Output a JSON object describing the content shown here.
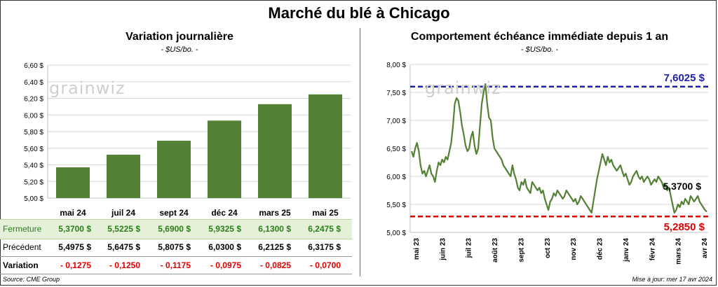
{
  "title": "Marché du blé à Chicago",
  "left_panel": {
    "title": "Variation  journalière",
    "unit": "- $US/bo. -"
  },
  "right_panel": {
    "title": "Comportement  échéance immédiate depuis 1 an",
    "unit": "- $US/bo. -"
  },
  "watermark": "grainwiz",
  "table": {
    "rows": [
      {
        "label": "Fermeture",
        "values": [
          "5,3700  $",
          "5,5225  $",
          "5,6900  $",
          "5,9325  $",
          "6,1300  $",
          "6,2475  $"
        ]
      },
      {
        "label": "Précédent",
        "values": [
          "5,4975  $",
          "5,6475  $",
          "5,8075  $",
          "6,0300  $",
          "6,2125  $",
          "6,3175  $"
        ]
      },
      {
        "label": "Variation",
        "values": [
          "- 0,1275",
          "- 0,1250",
          "- 0,1175",
          "- 0,0975",
          "- 0,0825",
          "- 0,0700"
        ]
      }
    ]
  },
  "footer": {
    "source": "Source: CME Group",
    "updated": "Mise à jour: mer 17 avr 2024"
  },
  "colors": {
    "bar": "#538135",
    "line": "#538135",
    "high_line": "#1f1fa8",
    "low_line": "#e00000"
  },
  "chart_data": [
    {
      "type": "bar",
      "title": "Variation  journalière",
      "subtitle": "- $US/bo. -",
      "categories": [
        "mai 24",
        "juil 24",
        "sept 24",
        "déc 24",
        "mars 25",
        "mai 25"
      ],
      "values": [
        5.37,
        5.5225,
        5.69,
        5.9325,
        6.13,
        6.2475
      ],
      "ylim": [
        5.0,
        6.6
      ],
      "yticks": [
        5.0,
        5.2,
        5.4,
        5.6,
        5.8,
        6.0,
        6.2,
        6.4,
        6.6
      ],
      "ytick_labels": [
        "5,00 $",
        "5,20 $",
        "5,40 $",
        "5,60 $",
        "5,80 $",
        "6,00 $",
        "6,20 $",
        "6,40 $",
        "6,60 $"
      ],
      "grid": true,
      "legend": "none"
    },
    {
      "type": "line",
      "title": "Comportement  échéance immédiate depuis 1 an",
      "subtitle": "- $US/bo. -",
      "x_labels": [
        "mai 23",
        "juin 23",
        "juil 23",
        "août 23",
        "sept 23",
        "oct 23",
        "nov 23",
        "déc 23",
        "janv 24",
        "févr 24",
        "mars 24",
        "avr 24"
      ],
      "ylim": [
        5.0,
        8.0
      ],
      "yticks": [
        5.0,
        5.5,
        6.0,
        6.5,
        7.0,
        7.5,
        8.0
      ],
      "ytick_labels": [
        "5,00 $",
        "5,50 $",
        "6,00 $",
        "6,50 $",
        "7,00 $",
        "7,50 $",
        "8,00 $"
      ],
      "series": [
        {
          "values": [
            6.45,
            6.35,
            6.5,
            6.6,
            6.45,
            6.2,
            6.05,
            6.1,
            6.0,
            6.1,
            6.2,
            6.05,
            6.0,
            5.9,
            6.1,
            6.25,
            6.2,
            6.3,
            6.25,
            6.35,
            6.3,
            6.45,
            6.6,
            6.9,
            7.3,
            7.4,
            7.35,
            7.15,
            6.9,
            6.75,
            6.55,
            6.45,
            6.5,
            6.7,
            6.8,
            6.55,
            6.4,
            6.5,
            6.9,
            7.3,
            7.5,
            7.65,
            7.3,
            7.05,
            7.0,
            6.7,
            6.5,
            6.45,
            6.4,
            6.35,
            6.3,
            6.2,
            6.15,
            6.1,
            6.05,
            6.0,
            6.2,
            6.05,
            5.95,
            5.8,
            5.75,
            5.9,
            5.85,
            5.95,
            5.8,
            5.75,
            5.7,
            5.9,
            5.85,
            5.8,
            5.75,
            5.8,
            5.7,
            5.75,
            5.6,
            5.5,
            5.4,
            5.55,
            5.6,
            5.7,
            5.65,
            5.75,
            5.7,
            5.65,
            5.6,
            5.65,
            5.75,
            5.7,
            5.65,
            5.6,
            5.55,
            5.6,
            5.5,
            5.55,
            5.65,
            5.6,
            5.55,
            5.5,
            5.45,
            5.4,
            5.35,
            5.55,
            5.75,
            5.95,
            6.1,
            6.25,
            6.4,
            6.3,
            6.2,
            6.35,
            6.25,
            6.3,
            6.2,
            6.15,
            6.1,
            6.15,
            6.2,
            6.1,
            6.0,
            6.05,
            5.95,
            5.85,
            5.9,
            6.0,
            6.05,
            6.1,
            6.0,
            5.95,
            6.0,
            5.9,
            5.95,
            6.0,
            5.95,
            5.85,
            5.9,
            5.95,
            5.9,
            6.0,
            5.95,
            5.9,
            5.8,
            5.85,
            5.75,
            5.8,
            5.65,
            5.5,
            5.35,
            5.4,
            5.5,
            5.45,
            5.55,
            5.5,
            5.6,
            5.55,
            5.5,
            5.65,
            5.6,
            5.55,
            5.6,
            5.65,
            5.55,
            5.5,
            5.45,
            5.4,
            5.37
          ]
        }
      ],
      "reference_lines": [
        {
          "value": 7.6025,
          "label": "7,6025 $",
          "style": "dashed"
        },
        {
          "value": 5.285,
          "label": "5,2850 $",
          "style": "dashed"
        }
      ],
      "last_value_label": "5,3700 $",
      "grid": true,
      "legend": "none"
    }
  ]
}
